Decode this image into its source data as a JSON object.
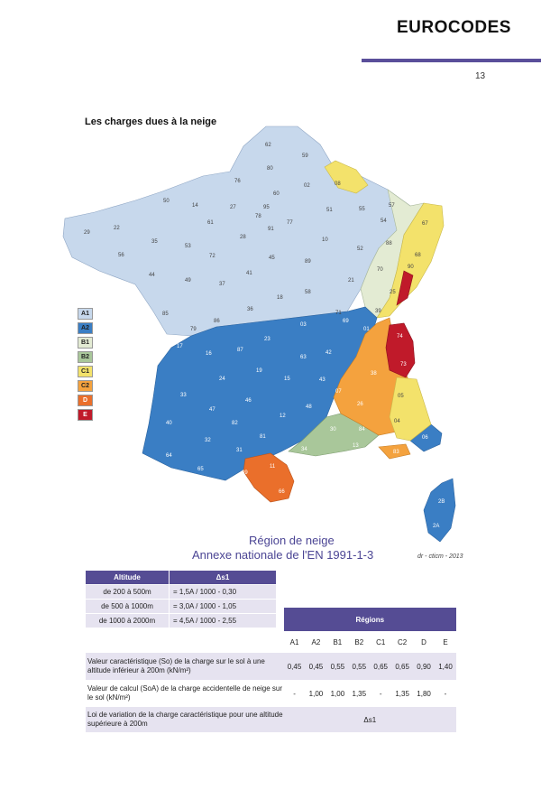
{
  "header": {
    "title": "EUROCODES",
    "page_number": "13"
  },
  "section_title": "Les charges dues à la neige",
  "map": {
    "caption_line1": "Région de neige",
    "caption_line2": "Annexe nationale de l'EN 1991-1-3",
    "credit": "dr - cticm - 2013",
    "region_colors": {
      "A1": "#c7d8ec",
      "A2": "#3a7ec4",
      "B1": "#e3ebd3",
      "B2": "#a9c79a",
      "C1": "#f3e26b",
      "C2": "#f4a23e",
      "D": "#ea6f2b",
      "E": "#c01a2a"
    },
    "departments": [
      "62",
      "59",
      "80",
      "76",
      "02",
      "08",
      "60",
      "95",
      "27",
      "14",
      "50",
      "78",
      "91",
      "77",
      "51",
      "55",
      "57",
      "54",
      "67",
      "29",
      "22",
      "35",
      "61",
      "28",
      "10",
      "52",
      "88",
      "68",
      "56",
      "53",
      "72",
      "45",
      "89",
      "21",
      "70",
      "90",
      "25",
      "44",
      "49",
      "37",
      "41",
      "18",
      "58",
      "39",
      "85",
      "36",
      "71",
      "79",
      "86",
      "03",
      "69",
      "01",
      "74",
      "17",
      "16",
      "87",
      "23",
      "63",
      "42",
      "38",
      "73",
      "24",
      "19",
      "15",
      "43",
      "07",
      "26",
      "05",
      "33",
      "47",
      "46",
      "12",
      "48",
      "40",
      "82",
      "81",
      "30",
      "84",
      "04",
      "06",
      "32",
      "31",
      "34",
      "13",
      "83",
      "64",
      "65",
      "09",
      "11",
      "66",
      "2B",
      "2A"
    ]
  },
  "legend": [
    {
      "code": "A1",
      "color": "#c7d8ec",
      "text_color": "#222"
    },
    {
      "code": "A2",
      "color": "#3a7ec4",
      "text_color": "#222"
    },
    {
      "code": "B1",
      "color": "#e3ebd3",
      "text_color": "#222"
    },
    {
      "code": "B2",
      "color": "#a9c79a",
      "text_color": "#222"
    },
    {
      "code": "C1",
      "color": "#f3e26b",
      "text_color": "#222"
    },
    {
      "code": "C2",
      "color": "#f4a23e",
      "text_color": "#222"
    },
    {
      "code": "D",
      "color": "#ea6f2b",
      "text_color": "#fff"
    },
    {
      "code": "E",
      "color": "#c01a2a",
      "text_color": "#fff"
    }
  ],
  "altitude_table": {
    "headers": [
      "Altitude",
      "Δs1"
    ],
    "rows": [
      [
        "de 200 à 500m",
        "= 1,5A / 1000 - 0,30"
      ],
      [
        "de 500 à 1000m",
        "= 3,0A / 1000 - 1,05"
      ],
      [
        "de 1000 à 2000m",
        "= 4,5A / 1000 - 2,55"
      ]
    ]
  },
  "regions_table": {
    "header": "Régions",
    "codes": [
      "A1",
      "A2",
      "B1",
      "B2",
      "C1",
      "C2",
      "D",
      "E"
    ],
    "rows": [
      {
        "label": "Valeur caractéristique (So) de la charge sur le sol à une altitude inférieur à 200m (kN/m²)",
        "values": [
          "0,45",
          "0,45",
          "0,55",
          "0,55",
          "0,65",
          "0,65",
          "0,90",
          "1,40"
        ]
      },
      {
        "label": "Valeur de calcul (SoA) de la charge accidentelle de neige sur le sol (kN/m²)",
        "values": [
          "-",
          "1,00",
          "1,00",
          "1,35",
          "-",
          "1,35",
          "1,80",
          "-"
        ]
      },
      {
        "label": "Loi de variation de la charge caractéristique pour une altitude supérieure à 200m",
        "span_value": "Δs1"
      }
    ]
  }
}
